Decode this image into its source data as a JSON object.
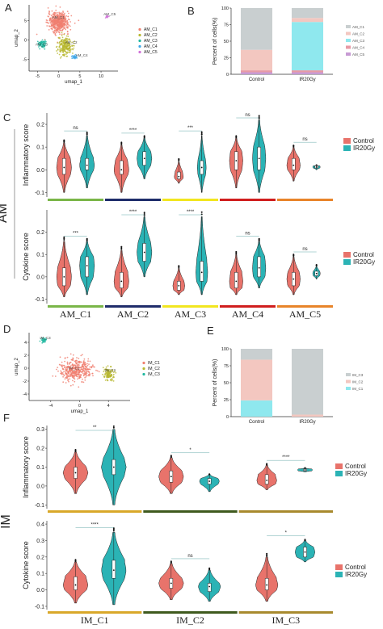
{
  "colors": {
    "control": "#e8736b",
    "ir20gy": "#2bb3b5",
    "cluster_C1": "#f08070",
    "cluster_C2": "#b8b830",
    "cluster_C3": "#20b8a0",
    "cluster_C4": "#40a8e8",
    "cluster_C5": "#d070d8",
    "bar_C1": "#c9cfd0",
    "bar_C2": "#f3c7c0",
    "bar_C3": "#8fe8ee",
    "bar_C4": "#e79aa6",
    "bar_C5": "#c79ad4",
    "im_bar_C1": "#c9cfd0",
    "im_bar_C2": "#f3c7c0",
    "im_bar_C3": "#8fe8ee",
    "am_strip": [
      "#7ab648",
      "#1f2d6b",
      "#f2e620",
      "#d01e1e",
      "#e8842a"
    ],
    "im_strip": [
      "#d9a82a",
      "#3f5a1e",
      "#a88a2e"
    ]
  },
  "panels": {
    "A": "A",
    "B": "B",
    "C": "C",
    "D": "D",
    "E": "E",
    "F": "F"
  },
  "group_labels": {
    "am": "AM",
    "im": "IM"
  },
  "chart_data": [
    {
      "id": "A",
      "type": "scatter",
      "xlabel": "umap_1",
      "ylabel": "umap_2",
      "xticks": [
        "-5",
        "0",
        "5",
        "10"
      ],
      "yticks": [
        "-5",
        "0",
        "5"
      ],
      "xlim": [
        -7,
        14
      ],
      "ylim": [
        -8,
        9
      ],
      "legend": [
        "AM_C1",
        "AM_C2",
        "AM_C3",
        "AM_C4",
        "AM_C5"
      ],
      "cluster_labels": [
        "AM_C1",
        "AM_C2",
        "AM_C3",
        "AM_C4",
        "AM_C5"
      ],
      "clusters": [
        {
          "name": "AM_C1",
          "cx": 0.0,
          "cy": 4.5,
          "sx": 2.2,
          "sy": 2.3
        },
        {
          "name": "AM_C2",
          "cx": 1.5,
          "cy": -1.5,
          "sx": 1.5,
          "sy": 2.2
        },
        {
          "name": "AM_C3",
          "cx": -4.0,
          "cy": -1.0,
          "sx": 0.8,
          "sy": 0.9
        },
        {
          "name": "AM_C4",
          "cx": 3.8,
          "cy": -4.5,
          "sx": 0.6,
          "sy": 0.5
        },
        {
          "name": "AM_C5",
          "cx": 11.5,
          "cy": 6.0,
          "sx": 0.5,
          "sy": 0.3
        }
      ]
    },
    {
      "id": "B",
      "type": "bar",
      "stacked": true,
      "ylabel": "Percent of cells(%)",
      "categories": [
        "Control",
        "IR20Gy"
      ],
      "yticks": [
        "0",
        "25",
        "50",
        "75",
        "100"
      ],
      "ylim": [
        0,
        100
      ],
      "legend": [
        "AM_C1",
        "AM_C2",
        "AM_C3",
        "AM_C4",
        "AM_C5"
      ],
      "series": [
        {
          "name": "AM_C5",
          "values": [
            3,
            3
          ]
        },
        {
          "name": "AM_C4",
          "values": [
            3,
            3
          ]
        },
        {
          "name": "AM_C3",
          "values": [
            0,
            73
          ]
        },
        {
          "name": "AM_C2",
          "values": [
            31,
            6
          ]
        },
        {
          "name": "AM_C1",
          "values": [
            63,
            15
          ]
        }
      ]
    },
    {
      "id": "C",
      "type": "violin",
      "ylabels": [
        "Inflammatory score",
        "Cytokine score"
      ],
      "groups": [
        "AM_C1",
        "AM_C2",
        "AM_C3",
        "AM_C4",
        "AM_C5"
      ],
      "legend": [
        "Control",
        "IR20Gy"
      ],
      "rows": [
        {
          "name": "Inflammatory score",
          "ylim": [
            -0.12,
            0.25
          ],
          "yticks": [
            "-0.1",
            "0.0",
            "0.1",
            "0.2"
          ],
          "significance": [
            "ns",
            "****",
            "***",
            "ns",
            "ns"
          ],
          "control": [
            {
              "min": -0.1,
              "q1": -0.02,
              "med": 0.01,
              "q3": 0.05,
              "max": 0.12,
              "w": 1.0
            },
            {
              "min": -0.1,
              "q1": -0.02,
              "med": 0.0,
              "q3": 0.04,
              "max": 0.11,
              "w": 1.0
            },
            {
              "min": -0.06,
              "q1": -0.04,
              "med": -0.03,
              "q3": -0.01,
              "max": 0.04,
              "w": 0.6
            },
            {
              "min": -0.08,
              "q1": 0.0,
              "med": 0.04,
              "q3": 0.08,
              "max": 0.14,
              "w": 0.9
            },
            {
              "min": -0.05,
              "q1": 0.0,
              "med": 0.02,
              "q3": 0.05,
              "max": 0.1,
              "w": 0.9
            }
          ],
          "ir20gy": [
            {
              "min": -0.08,
              "q1": 0.0,
              "med": 0.02,
              "q3": 0.05,
              "max": 0.15,
              "w": 1.0
            },
            {
              "min": -0.04,
              "q1": 0.02,
              "med": 0.05,
              "q3": 0.08,
              "max": 0.14,
              "w": 1.0
            },
            {
              "min": -0.1,
              "q1": -0.02,
              "med": 0.01,
              "q3": 0.04,
              "max": 0.15,
              "w": 0.6
            },
            {
              "min": -0.1,
              "q1": 0.0,
              "med": 0.05,
              "q3": 0.1,
              "max": 0.22,
              "w": 0.9
            },
            {
              "min": 0.0,
              "q1": 0.008,
              "med": 0.012,
              "q3": 0.018,
              "max": 0.02,
              "w": 0.5
            }
          ]
        },
        {
          "name": "Cytokine score",
          "ylim": [
            -0.12,
            0.3
          ],
          "yticks": [
            "-0.1",
            "0.0",
            "0.1",
            "0.2"
          ],
          "significance": [
            "***",
            "****",
            "****",
            "ns",
            "ns"
          ],
          "control": [
            {
              "min": -0.09,
              "q1": -0.04,
              "med": 0.0,
              "q3": 0.04,
              "max": 0.16,
              "w": 1.0
            },
            {
              "min": -0.09,
              "q1": -0.05,
              "med": -0.02,
              "q3": 0.02,
              "max": 0.12,
              "w": 1.0
            },
            {
              "min": -0.08,
              "q1": -0.06,
              "med": -0.04,
              "q3": -0.02,
              "max": 0.04,
              "w": 0.8
            },
            {
              "min": -0.08,
              "q1": -0.05,
              "med": -0.02,
              "q3": 0.02,
              "max": 0.1,
              "w": 0.9
            },
            {
              "min": -0.08,
              "q1": -0.04,
              "med": -0.01,
              "q3": 0.02,
              "max": 0.09,
              "w": 0.9
            }
          ],
          "ir20gy": [
            {
              "min": -0.08,
              "q1": 0.0,
              "med": 0.05,
              "q3": 0.09,
              "max": 0.16,
              "w": 1.0
            },
            {
              "min": 0.0,
              "q1": 0.07,
              "med": 0.11,
              "q3": 0.15,
              "max": 0.27,
              "w": 1.0
            },
            {
              "min": -0.08,
              "q1": -0.02,
              "med": 0.02,
              "q3": 0.07,
              "max": 0.27,
              "w": 0.8
            },
            {
              "min": -0.05,
              "q1": 0.0,
              "med": 0.04,
              "q3": 0.09,
              "max": 0.16,
              "w": 0.9
            },
            {
              "min": -0.01,
              "q1": 0.005,
              "med": 0.015,
              "q3": 0.025,
              "max": 0.05,
              "w": 0.5
            }
          ]
        }
      ]
    },
    {
      "id": "D",
      "type": "scatter",
      "xlabel": "umap_1",
      "ylabel": "umap_2",
      "xticks": [
        "-4",
        "0",
        "4"
      ],
      "yticks": [
        "-4",
        "-2",
        "0",
        "2",
        "4"
      ],
      "xlim": [
        -7,
        7
      ],
      "ylim": [
        -5,
        5.5
      ],
      "legend": [
        "IM_C1",
        "IM_C2",
        "IM_C3"
      ],
      "cluster_labels": [
        "IM_C1",
        "IM_C2",
        "IM_C3"
      ],
      "clusters": [
        {
          "name": "IM_C1",
          "cx": -0.5,
          "cy": -0.3,
          "sx": 2.0,
          "sy": 1.5
        },
        {
          "name": "IM_C2",
          "cx": 4.0,
          "cy": -0.8,
          "sx": 0.7,
          "sy": 1.0
        },
        {
          "name": "IM_C3",
          "cx": -5.0,
          "cy": 4.3,
          "sx": 0.35,
          "sy": 0.35
        }
      ]
    },
    {
      "id": "E",
      "type": "bar",
      "stacked": true,
      "ylabel": "Percent of cells(%)",
      "categories": [
        "Control",
        "IR20Gy"
      ],
      "yticks": [
        "0",
        "25",
        "50",
        "75",
        "100"
      ],
      "ylim": [
        0,
        100
      ],
      "legend": [
        "IM_C3",
        "IM_C2",
        "IM_C1"
      ],
      "series": [
        {
          "name": "IM_C3",
          "values": [
            24,
            0
          ]
        },
        {
          "name": "IM_C2",
          "values": [
            60,
            3
          ]
        },
        {
          "name": "IM_C1",
          "values": [
            16,
            97
          ]
        }
      ]
    },
    {
      "id": "F",
      "type": "violin",
      "ylabels": [
        "Inflammatory score",
        "Cytokine score"
      ],
      "groups": [
        "IM_C1",
        "IM_C2",
        "IM_C3"
      ],
      "legend": [
        "Control",
        "IR20Gy"
      ],
      "rows": [
        {
          "name": "Inflammatory score",
          "ylim": [
            -0.12,
            0.32
          ],
          "yticks": [
            "-0.1",
            "0.0",
            "0.1",
            "0.2",
            "0.3"
          ],
          "significance": [
            "**",
            "*",
            "****"
          ],
          "control": [
            {
              "min": -0.04,
              "q1": 0.04,
              "med": 0.07,
              "q3": 0.1,
              "max": 0.18,
              "w": 1.0
            },
            {
              "min": -0.04,
              "q1": 0.02,
              "med": 0.05,
              "q3": 0.08,
              "max": 0.15,
              "w": 1.0
            },
            {
              "min": -0.02,
              "q1": 0.01,
              "med": 0.03,
              "q3": 0.06,
              "max": 0.11,
              "w": 0.8
            }
          ],
          "ir20gy": [
            {
              "min": -0.1,
              "q1": 0.06,
              "med": 0.1,
              "q3": 0.14,
              "max": 0.3,
              "w": 1.0
            },
            {
              "min": -0.03,
              "q1": 0.01,
              "med": 0.025,
              "q3": 0.04,
              "max": 0.06,
              "w": 0.8
            },
            {
              "min": 0.075,
              "q1": 0.08,
              "med": 0.085,
              "q3": 0.09,
              "max": 0.095,
              "w": 0.6
            }
          ]
        },
        {
          "name": "Cytokine score",
          "ylim": [
            -0.12,
            0.42
          ],
          "yticks": [
            "-0.1",
            "0.0",
            "0.1",
            "0.2",
            "0.3",
            "0.4"
          ],
          "significance": [
            "****",
            "ns",
            "*"
          ],
          "control": [
            {
              "min": -0.08,
              "q1": 0.0,
              "med": 0.03,
              "q3": 0.08,
              "max": 0.17,
              "w": 1.0
            },
            {
              "min": -0.06,
              "q1": 0.01,
              "med": 0.04,
              "q3": 0.07,
              "max": 0.16,
              "w": 1.0
            },
            {
              "min": -0.07,
              "q1": 0.0,
              "med": 0.03,
              "q3": 0.07,
              "max": 0.2,
              "w": 0.9
            }
          ],
          "ir20gy": [
            {
              "min": -0.09,
              "q1": 0.07,
              "med": 0.12,
              "q3": 0.18,
              "max": 0.35,
              "w": 1.0
            },
            {
              "min": -0.07,
              "q1": -0.01,
              "med": 0.02,
              "q3": 0.04,
              "max": 0.12,
              "w": 0.9
            },
            {
              "min": 0.17,
              "q1": 0.2,
              "med": 0.23,
              "q3": 0.26,
              "max": 0.3,
              "w": 0.8
            }
          ]
        }
      ]
    }
  ]
}
